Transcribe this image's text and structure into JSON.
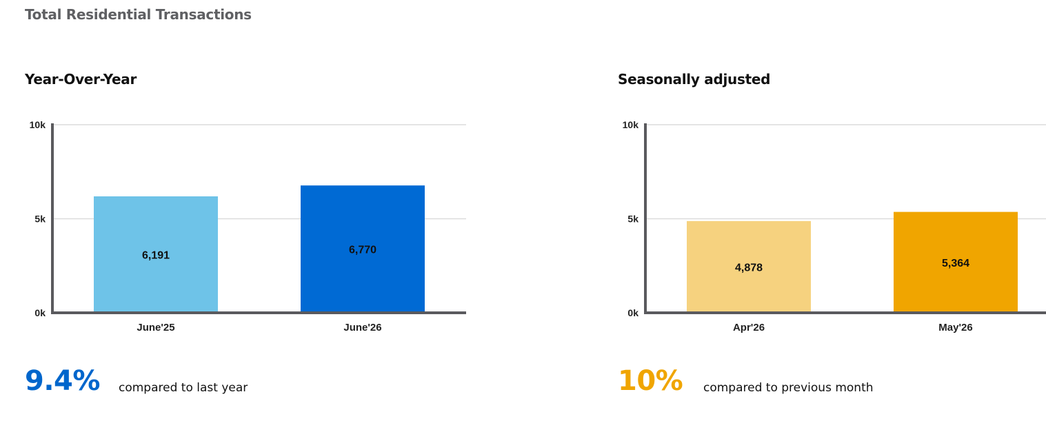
{
  "page_title": "Total Residential Transactions",
  "panels": [
    {
      "title": "Year-Over-Year",
      "stat_value": "9.4%",
      "stat_text": "compared to last year",
      "stat_color": "#0066cc"
    },
    {
      "title": "Seasonally adjusted",
      "stat_value": "10%",
      "stat_text": "compared to previous month",
      "stat_color": "#f0a500"
    }
  ],
  "chart_data": [
    {
      "type": "bar",
      "title": "Year-Over-Year",
      "categories": [
        "June'25",
        "June'26"
      ],
      "values": [
        6191,
        6770
      ],
      "value_labels": [
        "6,191",
        "6,770"
      ],
      "colors": [
        "#6ec3e8",
        "#006ad4"
      ],
      "ylim": [
        0,
        10000
      ],
      "yticks": [
        0,
        5000,
        10000
      ],
      "ytick_labels": [
        "0k",
        "5k",
        "10k"
      ],
      "grid": true
    },
    {
      "type": "bar",
      "title": "Seasonally adjusted",
      "categories": [
        "Apr'26",
        "May'26"
      ],
      "values": [
        4878,
        5364
      ],
      "value_labels": [
        "4,878",
        "5,364"
      ],
      "colors": [
        "#f6d27f",
        "#f0a500"
      ],
      "ylim": [
        0,
        10000
      ],
      "yticks": [
        0,
        5000,
        10000
      ],
      "ytick_labels": [
        "0k",
        "5k",
        "10k"
      ],
      "grid": true
    }
  ]
}
